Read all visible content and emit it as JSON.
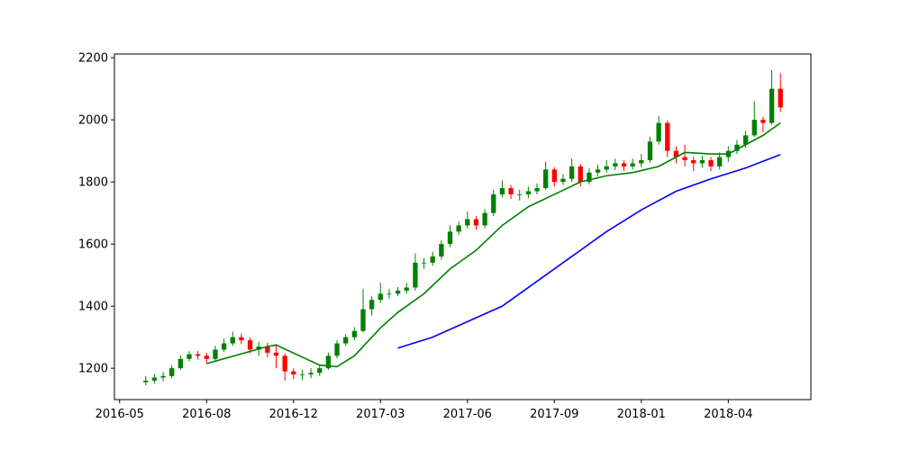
{
  "chart_data": {
    "type": "candlestick",
    "up_color": "green",
    "down_color": "red",
    "x": [
      3,
      4,
      5,
      6,
      7,
      8,
      9,
      10,
      11,
      12,
      13,
      14,
      15,
      16,
      17,
      18,
      19,
      20,
      21,
      22,
      23,
      24,
      25,
      26,
      27,
      28,
      29,
      30,
      31,
      32,
      33,
      34,
      35,
      36,
      37,
      38,
      39,
      40,
      41,
      42,
      43,
      44,
      45,
      46,
      47,
      48,
      49,
      50,
      51,
      52,
      53,
      54,
      55,
      56,
      57,
      58,
      59,
      60,
      61,
      62,
      63,
      64,
      65,
      66,
      67,
      68,
      69,
      70,
      71,
      72,
      73,
      74,
      75,
      76
    ],
    "open": [
      1155,
      1160,
      1170,
      1175,
      1200,
      1230,
      1245,
      1240,
      1230,
      1260,
      1280,
      1300,
      1290,
      1260,
      1270,
      1250,
      1240,
      1190,
      1180,
      1180,
      1185,
      1200,
      1240,
      1280,
      1300,
      1320,
      1390,
      1420,
      1440,
      1440,
      1450,
      1460,
      1540,
      1540,
      1560,
      1600,
      1640,
      1660,
      1680,
      1660,
      1700,
      1760,
      1780,
      1760,
      1760,
      1770,
      1780,
      1840,
      1800,
      1810,
      1850,
      1800,
      1830,
      1840,
      1850,
      1860,
      1850,
      1860,
      1870,
      1930,
      1990,
      1900,
      1880,
      1870,
      1860,
      1870,
      1850,
      1880,
      1900,
      1920,
      1950,
      2000,
      1990,
      2100
    ],
    "high": [
      1175,
      1182,
      1188,
      1210,
      1242,
      1255,
      1256,
      1250,
      1272,
      1295,
      1318,
      1312,
      1298,
      1285,
      1282,
      1278,
      1248,
      1200,
      1195,
      1200,
      1212,
      1250,
      1290,
      1310,
      1332,
      1455,
      1432,
      1475,
      1455,
      1462,
      1475,
      1570,
      1555,
      1575,
      1612,
      1660,
      1672,
      1705,
      1690,
      1712,
      1775,
      1805,
      1790,
      1775,
      1785,
      1795,
      1865,
      1848,
      1825,
      1875,
      1858,
      1845,
      1855,
      1870,
      1875,
      1870,
      1875,
      1890,
      1945,
      2012,
      1998,
      1915,
      1920,
      1882,
      1885,
      1880,
      1895,
      1915,
      1935,
      1965,
      2060,
      2010,
      2160,
      2150
    ],
    "low": [
      1145,
      1150,
      1158,
      1168,
      1195,
      1222,
      1228,
      1215,
      1225,
      1252,
      1272,
      1278,
      1248,
      1240,
      1235,
      1200,
      1160,
      1165,
      1162,
      1168,
      1175,
      1195,
      1232,
      1272,
      1290,
      1315,
      1370,
      1410,
      1425,
      1432,
      1440,
      1450,
      1520,
      1530,
      1550,
      1590,
      1630,
      1650,
      1645,
      1650,
      1690,
      1750,
      1745,
      1740,
      1748,
      1760,
      1775,
      1785,
      1790,
      1800,
      1785,
      1792,
      1818,
      1830,
      1838,
      1835,
      1840,
      1848,
      1862,
      1920,
      1880,
      1860,
      1850,
      1835,
      1845,
      1835,
      1840,
      1865,
      1890,
      1910,
      1945,
      1960,
      1985,
      2025
    ],
    "close": [
      1160,
      1170,
      1175,
      1200,
      1230,
      1245,
      1240,
      1230,
      1260,
      1280,
      1300,
      1290,
      1260,
      1270,
      1250,
      1240,
      1190,
      1180,
      1180,
      1185,
      1200,
      1240,
      1280,
      1300,
      1320,
      1390,
      1420,
      1440,
      1440,
      1450,
      1460,
      1540,
      1540,
      1560,
      1600,
      1640,
      1660,
      1680,
      1660,
      1700,
      1760,
      1780,
      1760,
      1760,
      1770,
      1780,
      1840,
      1800,
      1810,
      1850,
      1800,
      1830,
      1840,
      1850,
      1860,
      1850,
      1860,
      1870,
      1930,
      1990,
      1900,
      1880,
      1870,
      1860,
      1870,
      1850,
      1880,
      1900,
      1920,
      1950,
      2000,
      1990,
      2100,
      2040
    ],
    "series": [
      {
        "color": "green",
        "x": [
          10,
          17,
          18,
          23,
          25,
          27,
          30,
          32,
          35,
          38,
          41,
          44,
          47,
          50,
          53,
          56,
          59,
          62,
          65,
          68,
          70,
          72,
          74,
          76
        ],
        "values": [
          1215,
          1270,
          1275,
          1210,
          1205,
          1240,
          1330,
          1380,
          1440,
          1520,
          1580,
          1660,
          1720,
          1760,
          1800,
          1820,
          1830,
          1850,
          1895,
          1890,
          1890,
          1920,
          1950,
          1990
        ]
      },
      {
        "color": "blue",
        "x": [
          32,
          36,
          40,
          44,
          48,
          52,
          56,
          60,
          64,
          68,
          72,
          76
        ],
        "values": [
          1265,
          1300,
          1350,
          1400,
          1480,
          1560,
          1640,
          1710,
          1770,
          1810,
          1845,
          1888
        ]
      }
    ],
    "xlim": [
      -0.6,
      79.5
    ],
    "xticks": [
      {
        "value": 0,
        "label": "2016-05"
      },
      {
        "value": 10,
        "label": "2016-08"
      },
      {
        "value": 20,
        "label": "2016-12"
      },
      {
        "value": 30,
        "label": "2017-03"
      },
      {
        "value": 40,
        "label": "2017-06"
      },
      {
        "value": 50,
        "label": "2017-09"
      },
      {
        "value": 60,
        "label": "2018-01"
      },
      {
        "value": 70,
        "label": "2018-04"
      }
    ],
    "ylim": [
      1099,
      2212
    ],
    "yticks": [
      1200,
      1400,
      1600,
      1800,
      2000,
      2200
    ]
  }
}
